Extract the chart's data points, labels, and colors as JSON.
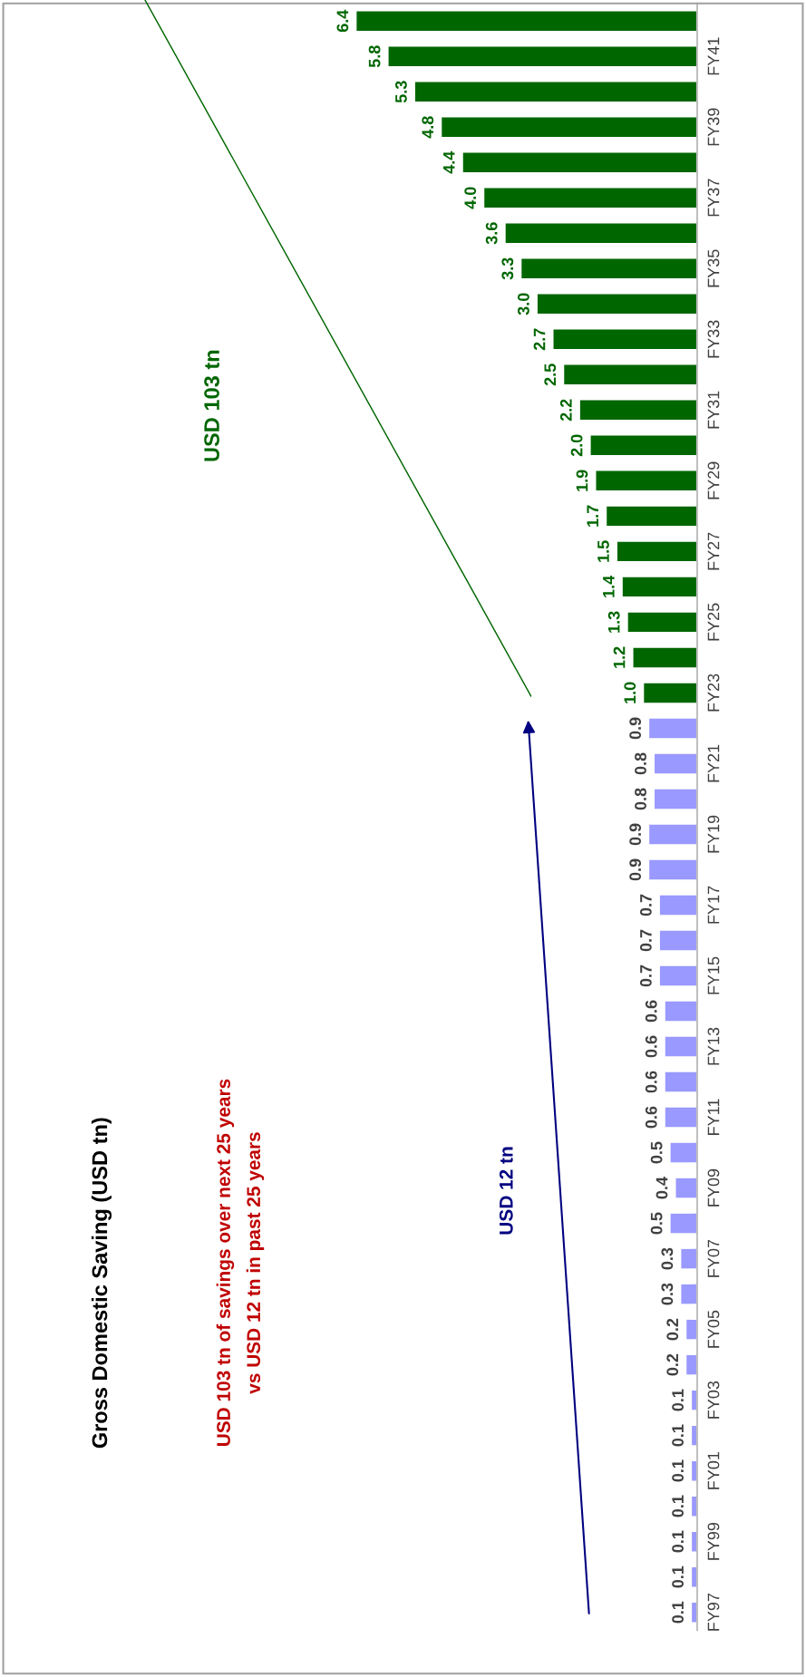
{
  "chart_data": {
    "type": "bar",
    "orientation": "horizontal",
    "title": "Gross Domestic Saving (USD tn)",
    "categories": [
      null,
      "FY41",
      null,
      "FY39",
      null,
      "FY37",
      null,
      "FY35",
      null,
      "FY33",
      null,
      "FY31",
      null,
      "FY29",
      null,
      "FY27",
      null,
      "FY25",
      null,
      "FY23",
      null,
      "FY21",
      null,
      "FY19",
      null,
      "FY17",
      null,
      "FY15",
      null,
      "FY13",
      null,
      "FY11",
      null,
      "FY09",
      null,
      "FY07",
      null,
      "FY05",
      null,
      "FY03",
      null,
      "FY01",
      null,
      "FY99",
      null,
      "FY97"
    ],
    "values": [
      6.4,
      5.8,
      5.3,
      4.8,
      4.4,
      4.0,
      3.6,
      3.3,
      3.0,
      2.7,
      2.5,
      2.2,
      2.0,
      1.9,
      1.7,
      1.5,
      1.4,
      1.3,
      1.2,
      1.0,
      0.9,
      0.8,
      0.8,
      0.9,
      0.9,
      0.7,
      0.7,
      0.7,
      0.6,
      0.6,
      0.6,
      0.6,
      0.5,
      0.4,
      0.5,
      0.3,
      0.3,
      0.2,
      0.2,
      0.1,
      0.1,
      0.1,
      0.1,
      0.1,
      0.1,
      0.1
    ],
    "value_labels": [
      "6.4",
      "5.8",
      "5.3",
      "4.8",
      "4.4",
      "4.0",
      "3.6",
      "3.3",
      "3.0",
      "2.7",
      "2.5",
      "2.2",
      "2.0",
      "1.9",
      "1.7",
      "1.5",
      "1.4",
      "1.3",
      "1.2",
      "1.0",
      "0.9",
      "0.8",
      "0.8",
      "0.9",
      "0.9",
      "0.7",
      "0.7",
      "0.7",
      "0.6",
      "0.6",
      "0.6",
      "0.6",
      "0.5",
      "0.4",
      "0.5",
      "0.3",
      "0.3",
      "0.2",
      "0.2",
      "0.1",
      "0.1",
      "0.1",
      "0.1",
      "0.1",
      "0.1",
      "0.1"
    ],
    "colors": [
      "#006600",
      "#006600",
      "#006600",
      "#006600",
      "#006600",
      "#006600",
      "#006600",
      "#006600",
      "#006600",
      "#006600",
      "#006600",
      "#006600",
      "#006600",
      "#006600",
      "#006600",
      "#006600",
      "#006600",
      "#006600",
      "#006600",
      "#006600",
      "#9999ff",
      "#9999ff",
      "#9999ff",
      "#9999ff",
      "#9999ff",
      "#9999ff",
      "#9999ff",
      "#9999ff",
      "#9999ff",
      "#9999ff",
      "#9999ff",
      "#9999ff",
      "#9999ff",
      "#9999ff",
      "#9999ff",
      "#9999ff",
      "#9999ff",
      "#9999ff",
      "#9999ff",
      "#9999ff",
      "#9999ff",
      "#9999ff",
      "#9999ff",
      "#9999ff",
      "#9999ff",
      "#9999ff"
    ],
    "annotations": [
      "USD 103 tn of savings over next 25 years\nvs USD 12 tn in past 25 years",
      "USD 12 tn",
      "USD 103 tn"
    ],
    "tick_labels": "y"
  }
}
